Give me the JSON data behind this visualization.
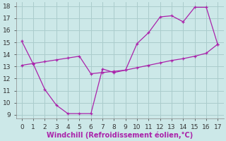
{
  "zigzag_x": [
    0,
    1,
    2,
    3,
    4,
    5,
    6,
    7,
    8,
    9,
    10,
    11,
    12,
    13,
    14,
    15,
    16,
    17
  ],
  "zigzag_y": [
    15.1,
    13.2,
    11.1,
    9.8,
    9.1,
    9.1,
    9.1,
    12.8,
    12.5,
    12.7,
    14.9,
    15.8,
    17.1,
    17.2,
    16.7,
    17.9,
    17.9,
    14.8
  ],
  "trend_x": [
    0,
    1,
    2,
    3,
    4,
    5,
    6,
    7,
    8,
    9,
    10,
    11,
    12,
    13,
    14,
    15,
    16,
    17
  ],
  "trend_y": [
    13.1,
    13.25,
    13.4,
    13.55,
    13.7,
    13.85,
    12.4,
    12.5,
    12.6,
    12.7,
    12.9,
    13.1,
    13.3,
    13.5,
    13.65,
    13.85,
    14.1,
    14.85
  ],
  "line_color": "#aa22aa",
  "bg_color": "#cce8e8",
  "grid_color": "#aacccc",
  "xlabel": "Windchill (Refroidissement éolien,°C)",
  "xlim": [
    -0.5,
    17.5
  ],
  "ylim": [
    8.7,
    18.3
  ],
  "xticks": [
    0,
    1,
    2,
    3,
    4,
    5,
    6,
    7,
    8,
    9,
    10,
    11,
    12,
    13,
    14,
    15,
    16,
    17
  ],
  "yticks": [
    9,
    10,
    11,
    12,
    13,
    14,
    15,
    16,
    17,
    18
  ],
  "xlabel_fontsize": 7.0,
  "tick_fontsize": 6.5
}
